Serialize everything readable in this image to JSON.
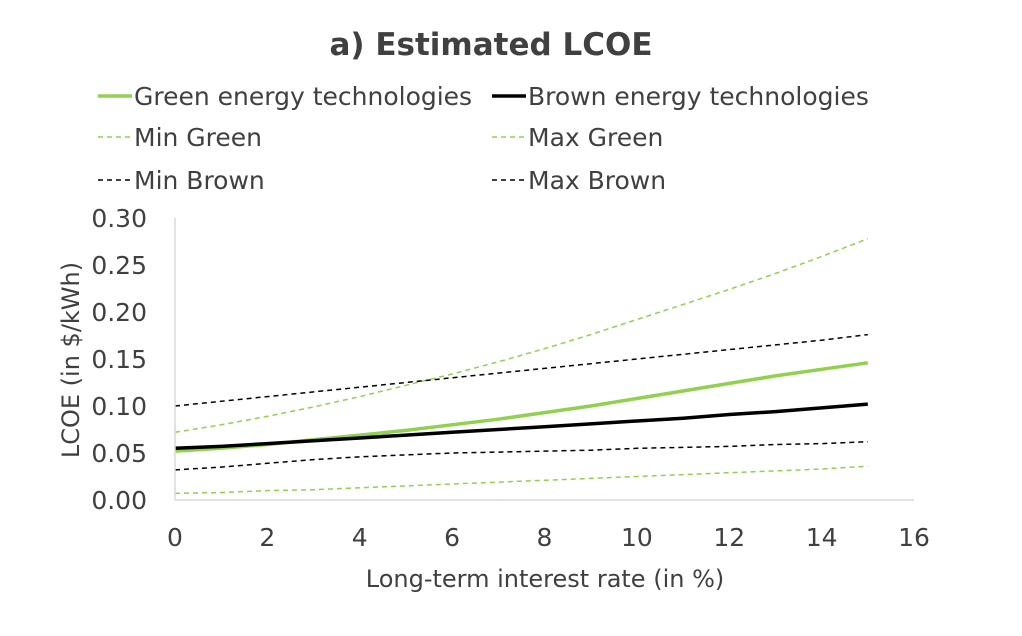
{
  "chart_data": {
    "type": "line",
    "title": "a) Estimated LCOE",
    "xlabel": "Long-term interest rate (in %)",
    "ylabel": "LCOE (in $/kWh)",
    "xlim": [
      0,
      16
    ],
    "ylim": [
      0,
      0.3
    ],
    "x_ticks": [
      "0",
      "2",
      "4",
      "6",
      "8",
      "10",
      "12",
      "14",
      "16"
    ],
    "y_ticks": [
      "0.00",
      "0.05",
      "0.10",
      "0.15",
      "0.20",
      "0.25",
      "0.30"
    ],
    "grid": false,
    "legend_position": "top",
    "x": [
      0,
      1,
      2,
      3,
      4,
      5,
      6,
      7,
      8,
      9,
      10,
      11,
      12,
      13,
      14,
      15
    ],
    "series": [
      {
        "name": "Green energy technologies",
        "color": "#92d050",
        "style": "solid",
        "values": [
          0.052,
          0.055,
          0.059,
          0.064,
          0.069,
          0.074,
          0.08,
          0.086,
          0.093,
          0.1,
          0.108,
          0.116,
          0.124,
          0.132,
          0.139,
          0.146
        ]
      },
      {
        "name": "Brown energy technologies",
        "color": "#000000",
        "style": "solid",
        "values": [
          0.055,
          0.057,
          0.06,
          0.063,
          0.066,
          0.069,
          0.072,
          0.075,
          0.078,
          0.081,
          0.084,
          0.087,
          0.091,
          0.094,
          0.098,
          0.102
        ]
      },
      {
        "name": "Min Green",
        "color": "#92d050",
        "style": "dashed",
        "values": [
          0.007,
          0.008,
          0.01,
          0.011,
          0.013,
          0.015,
          0.017,
          0.019,
          0.021,
          0.023,
          0.025,
          0.027,
          0.029,
          0.031,
          0.033,
          0.036
        ]
      },
      {
        "name": "Max Green",
        "color": "#92d050",
        "style": "dashed",
        "values": [
          0.072,
          0.08,
          0.089,
          0.099,
          0.11,
          0.122,
          0.134,
          0.147,
          0.161,
          0.176,
          0.192,
          0.208,
          0.224,
          0.241,
          0.259,
          0.278
        ]
      },
      {
        "name": "Min Brown",
        "color": "#000000",
        "style": "dashed",
        "values": [
          0.032,
          0.035,
          0.039,
          0.043,
          0.046,
          0.048,
          0.05,
          0.051,
          0.052,
          0.053,
          0.055,
          0.056,
          0.057,
          0.059,
          0.06,
          0.062
        ]
      },
      {
        "name": "Max Brown",
        "color": "#000000",
        "style": "dashed",
        "values": [
          0.1,
          0.105,
          0.11,
          0.115,
          0.12,
          0.125,
          0.13,
          0.135,
          0.14,
          0.145,
          0.15,
          0.155,
          0.16,
          0.165,
          0.17,
          0.176
        ]
      }
    ]
  }
}
